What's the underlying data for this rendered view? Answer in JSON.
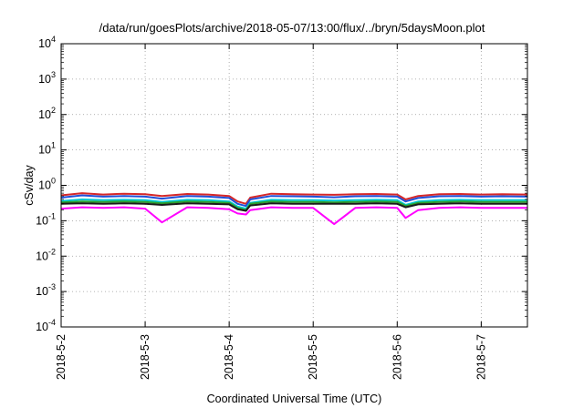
{
  "chart_data": {
    "type": "line",
    "title": "/data/run/goesPlots/archive/2018-05-07/13:00/flux/../bryn/5daysMoon.plot",
    "xlabel": "Coordinated Universal Time (UTC)",
    "ylabel": "cSv/day",
    "yscale": "log",
    "ylim": [
      0.0001,
      10000
    ],
    "xlim_days": [
      0,
      5.55
    ],
    "grid": true,
    "x_tick_labels": [
      "2018-5-2",
      "2018-5-3",
      "2018-5-4",
      "2018-5-5",
      "2018-5-6",
      "2018-5-7"
    ],
    "y_ticks": [
      {
        "base": "10",
        "exp": "4",
        "value": 10000
      },
      {
        "base": "10",
        "exp": "3",
        "value": 1000
      },
      {
        "base": "10",
        "exp": "2",
        "value": 100
      },
      {
        "base": "10",
        "exp": "1",
        "value": 10
      },
      {
        "base": "10",
        "exp": "0",
        "value": 1
      },
      {
        "base": "10",
        "exp": "-1",
        "value": 0.1
      },
      {
        "base": "10",
        "exp": "-2",
        "value": 0.01
      },
      {
        "base": "10",
        "exp": "-3",
        "value": 0.001
      },
      {
        "base": "10",
        "exp": "-4",
        "value": 0.0001
      }
    ],
    "x_days": [
      0,
      0.25,
      0.5,
      0.75,
      1.0,
      1.2,
      1.5,
      1.75,
      2.0,
      2.1,
      2.2,
      2.25,
      2.5,
      2.75,
      3.0,
      3.25,
      3.5,
      3.75,
      4.0,
      4.1,
      4.25,
      4.5,
      4.75,
      5.0,
      5.25,
      5.55
    ],
    "series": [
      {
        "color": "#d62728",
        "values": [
          0.52,
          0.6,
          0.55,
          0.58,
          0.56,
          0.5,
          0.57,
          0.55,
          0.5,
          0.35,
          0.3,
          0.45,
          0.58,
          0.56,
          0.55,
          0.54,
          0.56,
          0.57,
          0.55,
          0.4,
          0.5,
          0.56,
          0.57,
          0.55,
          0.56,
          0.55
        ]
      },
      {
        "color": "#1f4fd8",
        "values": [
          0.45,
          0.52,
          0.48,
          0.5,
          0.48,
          0.42,
          0.5,
          0.48,
          0.44,
          0.3,
          0.26,
          0.4,
          0.5,
          0.49,
          0.48,
          0.46,
          0.49,
          0.5,
          0.48,
          0.35,
          0.44,
          0.49,
          0.5,
          0.48,
          0.49,
          0.48
        ]
      },
      {
        "color": "#00c8d0",
        "values": [
          0.36,
          0.4,
          0.38,
          0.39,
          0.38,
          0.34,
          0.39,
          0.38,
          0.35,
          0.25,
          0.22,
          0.32,
          0.39,
          0.38,
          0.38,
          0.37,
          0.38,
          0.39,
          0.38,
          0.28,
          0.35,
          0.38,
          0.39,
          0.38,
          0.38,
          0.38
        ]
      },
      {
        "color": "#2ca02c",
        "values": [
          0.33,
          0.35,
          0.34,
          0.35,
          0.34,
          0.31,
          0.35,
          0.34,
          0.32,
          0.23,
          0.2,
          0.3,
          0.35,
          0.34,
          0.34,
          0.33,
          0.34,
          0.35,
          0.34,
          0.26,
          0.32,
          0.34,
          0.35,
          0.34,
          0.34,
          0.34
        ]
      },
      {
        "color": "#1a1a1a",
        "values": [
          0.3,
          0.31,
          0.3,
          0.31,
          0.3,
          0.28,
          0.31,
          0.3,
          0.29,
          0.21,
          0.19,
          0.27,
          0.31,
          0.3,
          0.3,
          0.3,
          0.3,
          0.31,
          0.3,
          0.24,
          0.29,
          0.3,
          0.31,
          0.3,
          0.3,
          0.3
        ]
      },
      {
        "color": "#ff00ff",
        "values": [
          0.22,
          0.24,
          0.23,
          0.24,
          0.22,
          0.09,
          0.24,
          0.23,
          0.21,
          0.16,
          0.15,
          0.2,
          0.24,
          0.23,
          0.23,
          0.08,
          0.23,
          0.24,
          0.23,
          0.12,
          0.2,
          0.23,
          0.24,
          0.23,
          0.23,
          0.23
        ]
      }
    ]
  }
}
